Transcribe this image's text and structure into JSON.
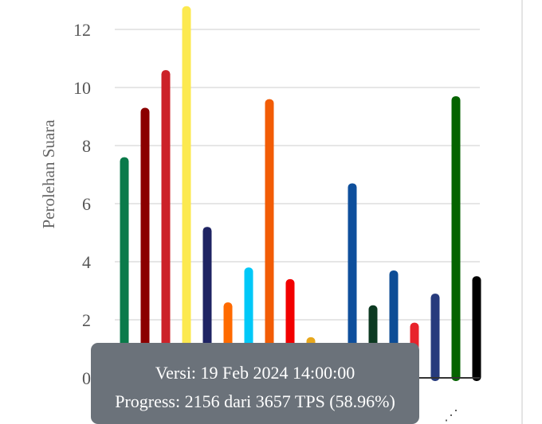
{
  "chart_data": {
    "type": "bar",
    "ylabel": "Perolehan Suara",
    "ylim": [
      0,
      12.8
    ],
    "yticks": [
      "0",
      "2",
      "4",
      "6",
      "8",
      "10",
      "12"
    ],
    "grid": true,
    "bars": [
      {
        "value": 7.6,
        "color": "#0a7a4a"
      },
      {
        "value": 9.3,
        "color": "#8b0000"
      },
      {
        "value": 10.6,
        "color": "#cc2229"
      },
      {
        "value": 12.8,
        "color": "#fce94f"
      },
      {
        "value": 5.2,
        "color": "#1f2463"
      },
      {
        "value": 2.6,
        "color": "#ff6a00"
      },
      {
        "value": 3.8,
        "color": "#00c8f8"
      },
      {
        "value": 9.6,
        "color": "#f25c05"
      },
      {
        "value": 3.4,
        "color": "#f20000"
      },
      {
        "value": 1.4,
        "color": "#e7a71c"
      },
      {
        "value": 0,
        "color": "#ffffff"
      },
      {
        "value": 6.7,
        "color": "#0e4f9c"
      },
      {
        "value": 2.5,
        "color": "#0d3a22"
      },
      {
        "value": 3.7,
        "color": "#0d4d96"
      },
      {
        "value": 1.9,
        "color": "#e8232b"
      },
      {
        "value": 2.9,
        "color": "#273b7d"
      },
      {
        "value": 9.7,
        "color": "#056300"
      },
      {
        "value": 3.5,
        "color": "#000000"
      }
    ]
  },
  "tooltip": {
    "line1": "Versi: 19 Feb 2024 14:00:00",
    "line2": "Progress: 2156 dari 3657 TPS (58.96%)"
  }
}
